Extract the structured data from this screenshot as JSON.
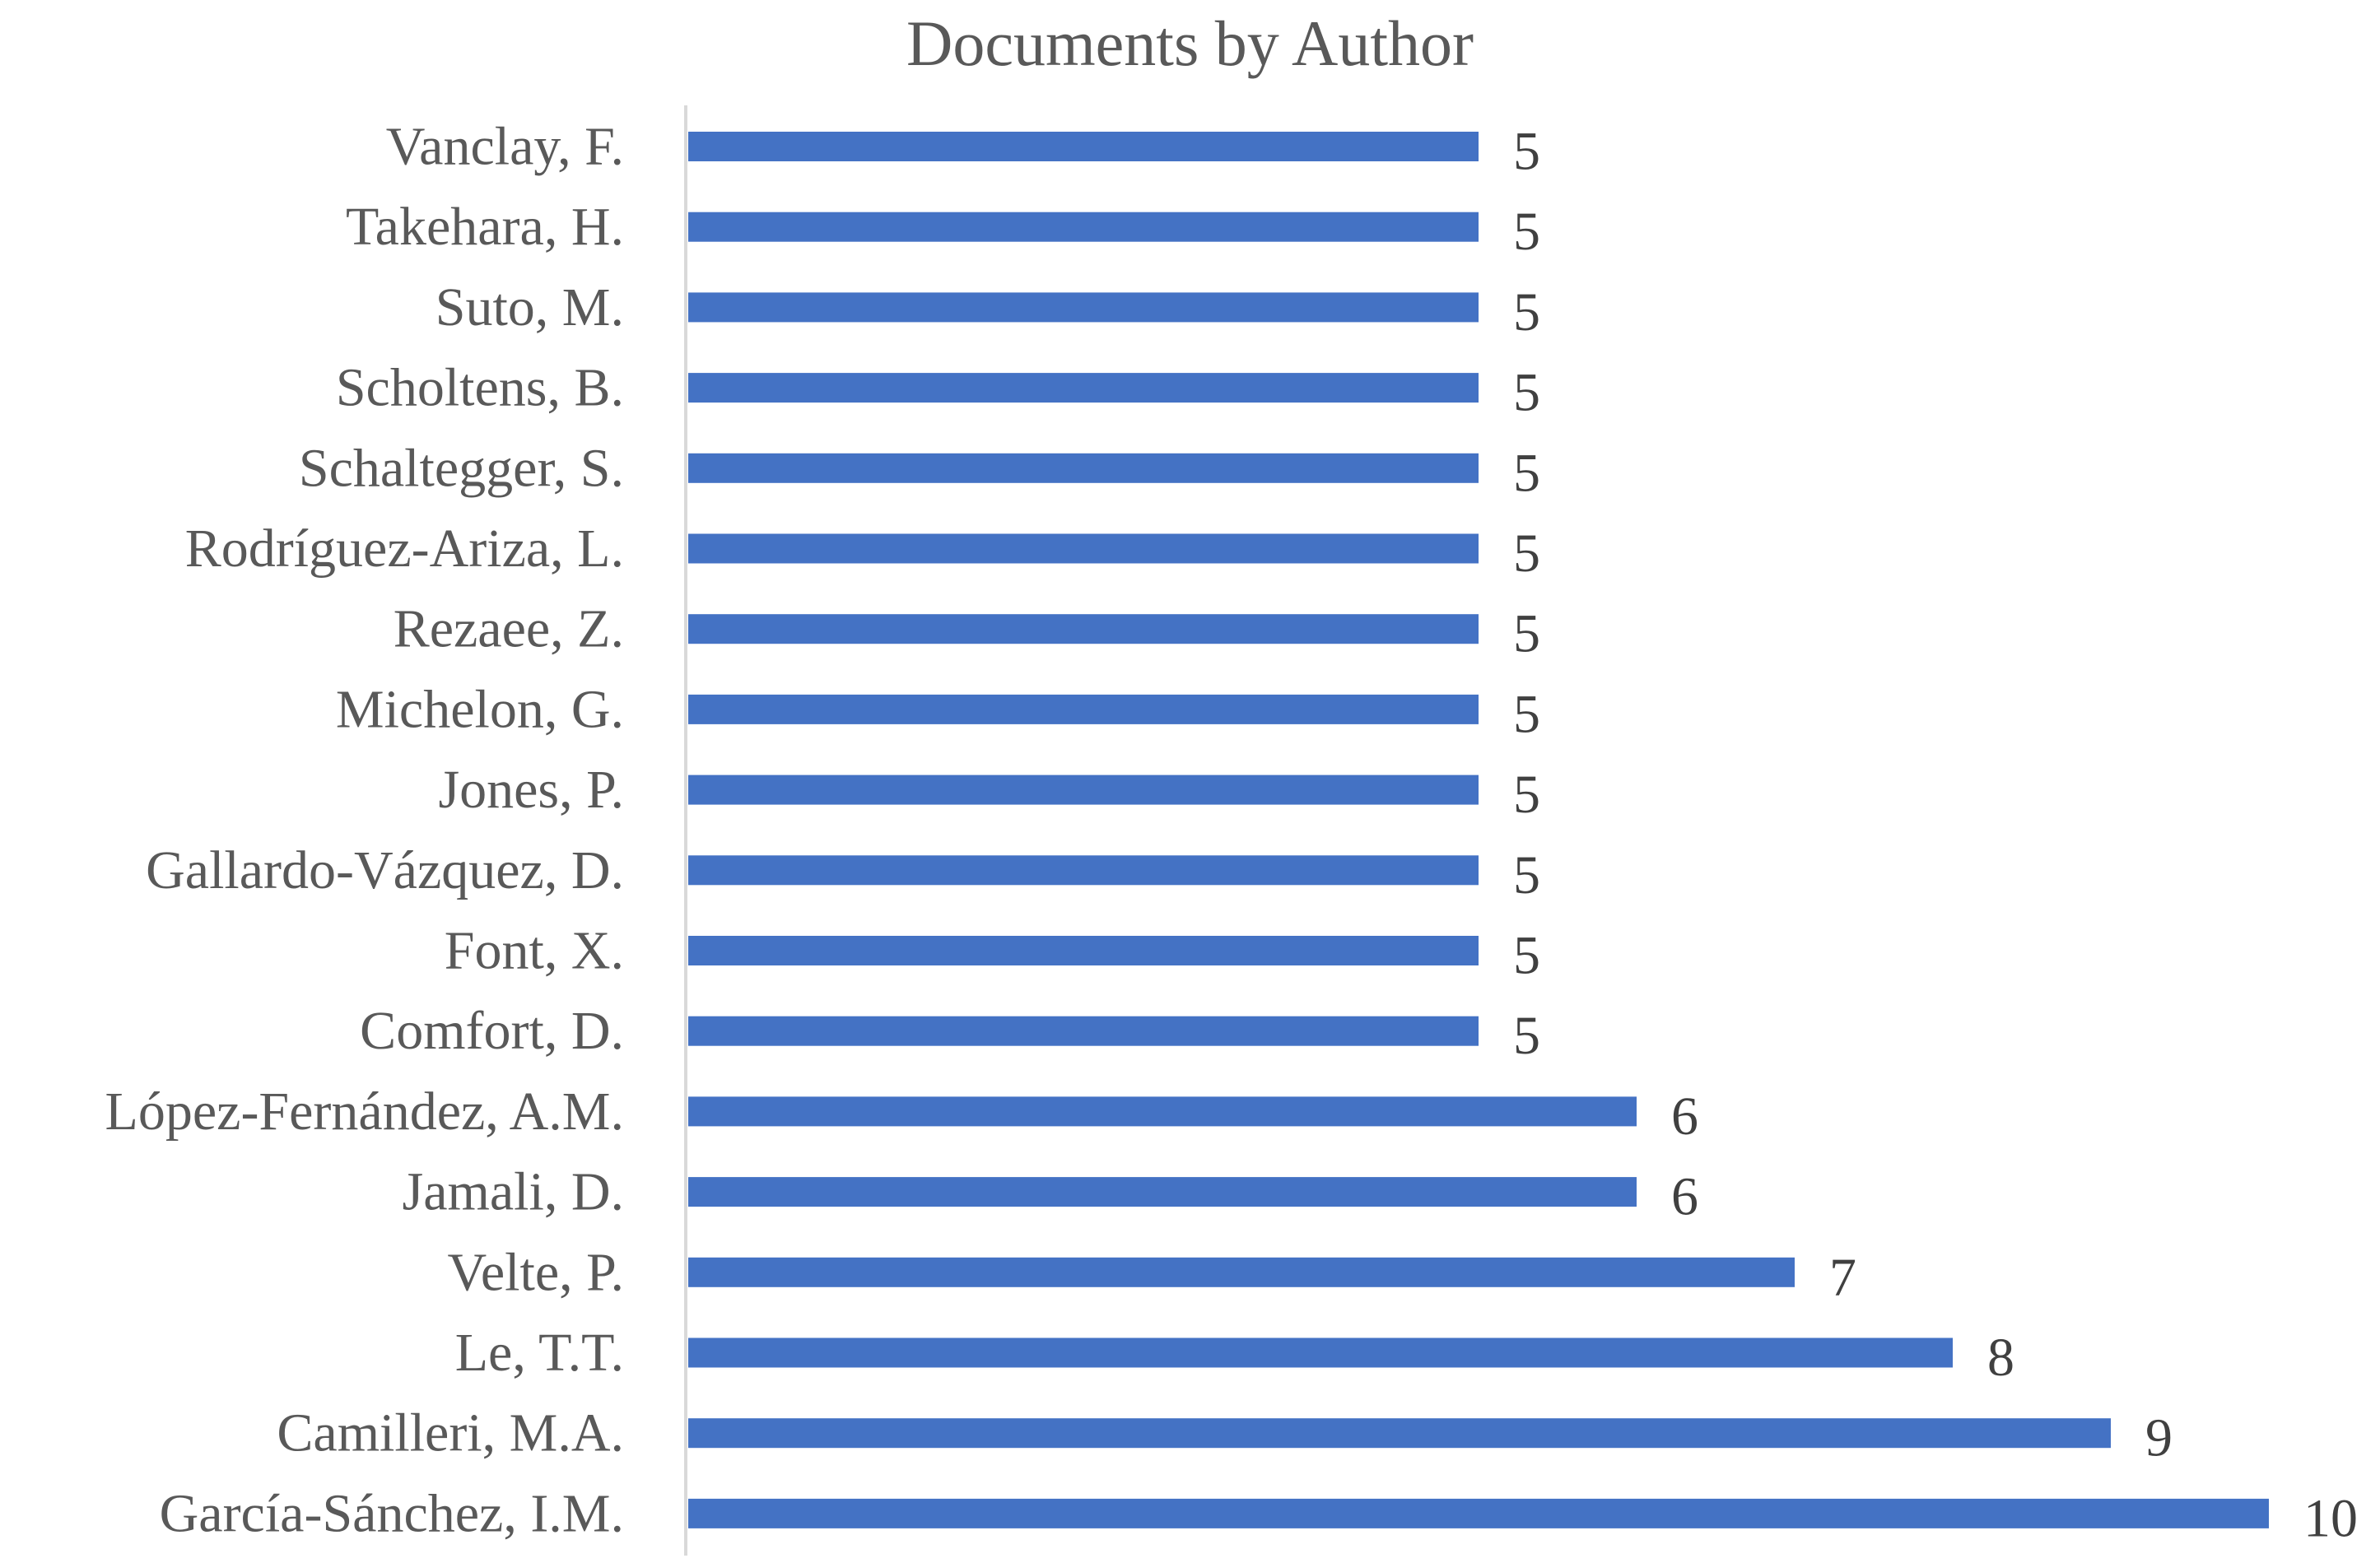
{
  "colors": {
    "bar": "#4472C4",
    "category_text": "#595959",
    "value_text": "#404040",
    "axis_line": "#D9D9D9",
    "background": "#FFFFFF"
  },
  "chart_data": {
    "type": "bar",
    "orientation": "horizontal",
    "title": "Documents by Author",
    "xlabel": "",
    "ylabel": "",
    "categories": [
      "Vanclay, F.",
      "Takehara, H.",
      "Suto, M.",
      "Scholtens, B.",
      "Schaltegger, S.",
      "Rodríguez-Ariza, L.",
      "Rezaee, Z.",
      "Michelon, G.",
      "Jones, P.",
      "Gallardo-Vázquez, D.",
      "Font, X.",
      "Comfort, D.",
      "López-Fernández, A.M.",
      "Jamali, D.",
      "Velte, P.",
      "Le, T.T.",
      "Camilleri, M.A.",
      "García-Sánchez, I.M."
    ],
    "values": [
      5,
      5,
      5,
      5,
      5,
      5,
      5,
      5,
      5,
      5,
      5,
      5,
      6,
      6,
      7,
      8,
      9,
      10
    ],
    "xlim": [
      0,
      10
    ],
    "grid": false,
    "legend": "none",
    "data_labels": true
  }
}
